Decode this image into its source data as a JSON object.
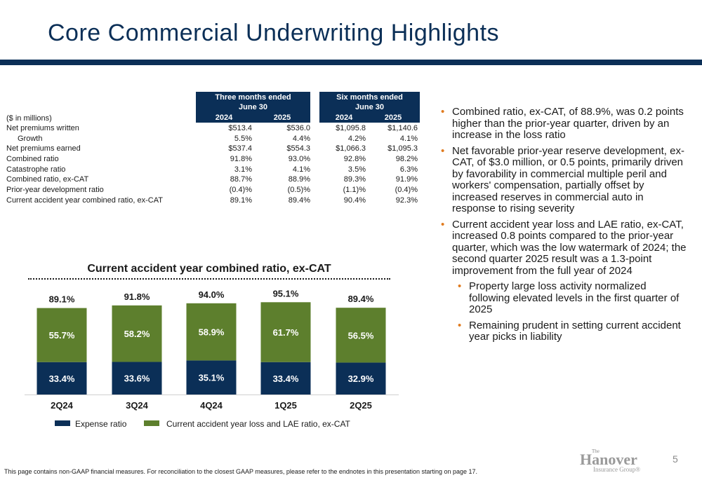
{
  "page": {
    "title": "Core Commercial Underwriting Highlights",
    "footer": "This page contains non-GAAP financial measures. For reconciliation to the closest GAAP measures, please refer to the endnotes in this presentation starting on page 17.",
    "page_number": "5",
    "logo": {
      "the": "The",
      "name": "Hanover",
      "group": "Insurance Group®"
    }
  },
  "table": {
    "group1_line1": "Three months ended",
    "group1_line2": "June 30",
    "group2_line1": "Six months ended",
    "group2_line2": "June 30",
    "years": [
      "2024",
      "2025",
      "2024",
      "2025"
    ],
    "units": "($ in millions)",
    "rows": [
      {
        "label": "Net premiums written",
        "values": [
          "$513.4",
          "$536.0",
          "$1,095.8",
          "$1,140.6"
        ]
      },
      {
        "label": "Growth",
        "values": [
          "5.5%",
          "4.4%",
          "4.2%",
          "4.1%"
        ]
      },
      {
        "label": "Net premiums earned",
        "values": [
          "$537.4",
          "$554.3",
          "$1,066.3",
          "$1,095.3"
        ]
      },
      {
        "label": "Combined ratio",
        "values": [
          "91.8%",
          "93.0%",
          "92.8%",
          "98.2%"
        ]
      },
      {
        "label": "Catastrophe ratio",
        "values": [
          "3.1%",
          "4.1%",
          "3.5%",
          "6.3%"
        ]
      },
      {
        "label": "Combined ratio, ex-CAT",
        "values": [
          "88.7%",
          "88.9%",
          "89.3%",
          "91.9%"
        ]
      },
      {
        "label": "Prior-year development ratio",
        "values": [
          "(0.4)%",
          "(0.5)%",
          "(1.1)%",
          "(0.4)%"
        ]
      },
      {
        "label": "Current accident year combined ratio, ex-CAT",
        "values": [
          "89.1%",
          "89.4%",
          "90.4%",
          "92.3%"
        ]
      }
    ]
  },
  "bullets": [
    {
      "text": "Combined ratio, ex-CAT, of 88.9%, was 0.2 points higher than the prior-year quarter, driven by an increase in the loss ratio"
    },
    {
      "text": "Net favorable prior-year reserve development, ex-CAT, of $3.0 million, or 0.5 points, primarily driven by favorability in commercial multiple peril and workers' compensation, partially offset by increased reserves in commercial auto in response to rising severity"
    },
    {
      "text": "Current accident year loss and LAE ratio, ex-CAT, increased 0.8 points compared to the prior-year quarter, which was the low watermark of 2024; the second quarter 2025 result was a 1.3-point improvement from the full year of 2024"
    }
  ],
  "sub_bullets": [
    {
      "text": "Property large loss activity normalized following elevated levels in the first quarter of 2025"
    },
    {
      "text": "Remaining prudent in setting current accident year picks in liability"
    }
  ],
  "bullet_marker": "•",
  "colors": {
    "navy": "#0b2f57",
    "green": "#5d7f2d",
    "accent": "#e07b1f"
  },
  "chart_data": {
    "type": "bar",
    "stacked": true,
    "title": "Current accident year combined ratio, ex-CAT",
    "categories": [
      "2Q24",
      "3Q24",
      "4Q24",
      "1Q25",
      "2Q25"
    ],
    "series": [
      {
        "name": "Expense ratio",
        "color": "#0b2f57",
        "values": [
          33.4,
          33.6,
          35.1,
          33.4,
          32.9
        ],
        "labels": [
          "33.4%",
          "33.6%",
          "35.1%",
          "33.4%",
          "32.9%"
        ]
      },
      {
        "name": "Current accident year loss and LAE ratio, ex-CAT",
        "color": "#5d7f2d",
        "values": [
          55.7,
          58.2,
          58.9,
          61.7,
          56.5
        ],
        "labels": [
          "55.7%",
          "58.2%",
          "58.9%",
          "61.7%",
          "56.5%"
        ]
      }
    ],
    "totals": [
      "89.1%",
      "91.8%",
      "94.0%",
      "95.1%",
      "89.4%"
    ],
    "ylim": [
      0,
      100
    ],
    "legend": "bottom"
  }
}
